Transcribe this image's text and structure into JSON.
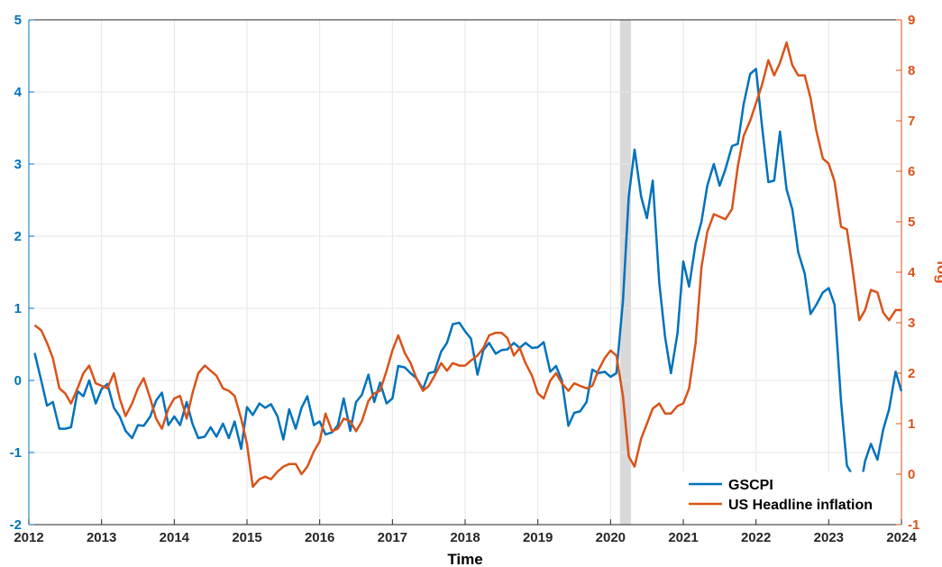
{
  "chart_data": {
    "type": "line",
    "x_label": "Time",
    "y2_label": "log",
    "legend": "lower right",
    "grid": true,
    "shade": {
      "x": [
        2020.13,
        2020.28
      ],
      "color": "#d9d9d9"
    },
    "xlim": [
      2012,
      2024
    ],
    "xticks": [
      2012,
      2013,
      2014,
      2015,
      2016,
      2017,
      2018,
      2019,
      2020,
      2021,
      2022,
      2023,
      2024
    ],
    "ylim": [
      -2,
      5
    ],
    "yticks": [
      -2,
      -1,
      0,
      1,
      2,
      3,
      4,
      5
    ],
    "y_color": "#0072bd",
    "y2lim": [
      -1,
      9
    ],
    "y2ticks": [
      -1,
      0,
      1,
      2,
      3,
      4,
      5,
      6,
      7,
      8,
      9
    ],
    "y2_color": "#d95319",
    "x": [
      2012.08,
      2012.17,
      2012.25,
      2012.33,
      2012.42,
      2012.5,
      2012.58,
      2012.67,
      2012.75,
      2012.83,
      2012.92,
      2013,
      2013.08,
      2013.17,
      2013.25,
      2013.33,
      2013.42,
      2013.5,
      2013.58,
      2013.67,
      2013.75,
      2013.83,
      2013.92,
      2014,
      2014.08,
      2014.17,
      2014.25,
      2014.33,
      2014.42,
      2014.5,
      2014.58,
      2014.67,
      2014.75,
      2014.83,
      2014.92,
      2015,
      2015.08,
      2015.17,
      2015.25,
      2015.33,
      2015.42,
      2015.5,
      2015.58,
      2015.67,
      2015.75,
      2015.83,
      2015.92,
      2016,
      2016.08,
      2016.17,
      2016.25,
      2016.33,
      2016.42,
      2016.5,
      2016.58,
      2016.67,
      2016.75,
      2016.83,
      2016.92,
      2017,
      2017.08,
      2017.17,
      2017.25,
      2017.33,
      2017.42,
      2017.5,
      2017.58,
      2017.67,
      2017.75,
      2017.83,
      2017.92,
      2018,
      2018.08,
      2018.17,
      2018.25,
      2018.33,
      2018.42,
      2018.5,
      2018.58,
      2018.67,
      2018.75,
      2018.83,
      2018.92,
      2019,
      2019.08,
      2019.17,
      2019.25,
      2019.33,
      2019.42,
      2019.5,
      2019.58,
      2019.67,
      2019.75,
      2019.83,
      2019.92,
      2020,
      2020.08,
      2020.17,
      2020.25,
      2020.33,
      2020.42,
      2020.5,
      2020.58,
      2020.67,
      2020.75,
      2020.83,
      2020.92,
      2021,
      2021.08,
      2021.17,
      2021.25,
      2021.33,
      2021.42,
      2021.5,
      2021.58,
      2021.67,
      2021.75,
      2021.83,
      2021.92,
      2022,
      2022.08,
      2022.17,
      2022.25,
      2022.33,
      2022.42,
      2022.5,
      2022.58,
      2022.67,
      2022.75,
      2022.83,
      2022.92,
      2023,
      2023.08,
      2023.17,
      2023.25,
      2023.33,
      2023.42,
      2023.5,
      2023.58,
      2023.67,
      2023.75,
      2023.83,
      2023.92,
      2024
    ],
    "series": [
      {
        "name": "GSCPI",
        "color": "#0072bd",
        "values": [
          0.38,
          0.0,
          -0.35,
          -0.3,
          -0.67,
          -0.67,
          -0.65,
          -0.15,
          -0.22,
          0.0,
          -0.32,
          -0.12,
          -0.05,
          -0.38,
          -0.5,
          -0.7,
          -0.8,
          -0.62,
          -0.63,
          -0.5,
          -0.28,
          -0.17,
          -0.62,
          -0.5,
          -0.62,
          -0.3,
          -0.6,
          -0.8,
          -0.78,
          -0.65,
          -0.78,
          -0.6,
          -0.8,
          -0.57,
          -0.95,
          -0.37,
          -0.48,
          -0.32,
          -0.38,
          -0.33,
          -0.5,
          -0.82,
          -0.4,
          -0.67,
          -0.38,
          -0.22,
          -0.62,
          -0.57,
          -0.75,
          -0.72,
          -0.62,
          -0.25,
          -0.7,
          -0.3,
          -0.2,
          0.08,
          -0.3,
          -0.03,
          -0.32,
          -0.25,
          0.2,
          0.18,
          0.1,
          0.03,
          -0.12,
          0.1,
          0.12,
          0.4,
          0.52,
          0.78,
          0.8,
          0.68,
          0.58,
          0.08,
          0.42,
          0.52,
          0.37,
          0.42,
          0.43,
          0.52,
          0.45,
          0.52,
          0.45,
          0.46,
          0.53,
          0.12,
          0.2,
          0.0,
          -0.63,
          -0.45,
          -0.43,
          -0.3,
          0.15,
          0.1,
          0.12,
          0.05,
          0.1,
          1.1,
          2.55,
          3.2,
          2.55,
          2.25,
          2.77,
          1.35,
          0.6,
          0.1,
          0.65,
          1.65,
          1.3,
          1.9,
          2.2,
          2.7,
          3.0,
          2.7,
          2.93,
          3.25,
          3.28,
          3.83,
          4.25,
          4.32,
          3.55,
          2.75,
          2.77,
          3.45,
          2.65,
          2.37,
          1.78,
          1.48,
          0.92,
          1.05,
          1.22,
          1.28,
          1.05,
          -0.3,
          -1.18,
          -1.32,
          -1.57,
          -1.12,
          -0.88,
          -1.1,
          -0.68,
          -0.4,
          0.12,
          -0.15
        ]
      },
      {
        "name": "US Headline inflation",
        "color": "#d95319",
        "axis": "y2",
        "values": [
          2.95,
          2.85,
          2.6,
          2.3,
          1.7,
          1.6,
          1.4,
          1.7,
          2.0,
          2.15,
          1.8,
          1.75,
          1.7,
          2.0,
          1.5,
          1.15,
          1.4,
          1.7,
          1.9,
          1.5,
          1.1,
          0.9,
          1.3,
          1.5,
          1.55,
          1.1,
          1.6,
          2.0,
          2.15,
          2.05,
          1.95,
          1.7,
          1.65,
          1.55,
          1.1,
          0.6,
          -0.25,
          -0.1,
          -0.05,
          -0.1,
          0.05,
          0.15,
          0.2,
          0.2,
          0.0,
          0.15,
          0.45,
          0.65,
          1.2,
          0.85,
          0.9,
          1.1,
          1.05,
          0.85,
          1.05,
          1.45,
          1.6,
          1.65,
          2.05,
          2.45,
          2.75,
          2.4,
          2.2,
          1.9,
          1.65,
          1.75,
          1.95,
          2.2,
          2.05,
          2.2,
          2.15,
          2.15,
          2.25,
          2.35,
          2.5,
          2.75,
          2.8,
          2.8,
          2.7,
          2.35,
          2.5,
          2.2,
          1.95,
          1.6,
          1.5,
          1.85,
          2.0,
          1.8,
          1.65,
          1.8,
          1.75,
          1.7,
          1.75,
          2.05,
          2.3,
          2.45,
          2.35,
          1.55,
          0.35,
          0.15,
          0.7,
          1.0,
          1.3,
          1.4,
          1.2,
          1.2,
          1.35,
          1.4,
          1.7,
          2.6,
          4.1,
          4.8,
          5.15,
          5.1,
          5.05,
          5.25,
          6.1,
          6.7,
          7.0,
          7.35,
          7.7,
          8.2,
          7.9,
          8.15,
          8.55,
          8.1,
          7.9,
          7.9,
          7.45,
          6.8,
          6.25,
          6.15,
          5.8,
          4.9,
          4.85,
          4.05,
          3.05,
          3.25,
          3.65,
          3.6,
          3.2,
          3.05,
          3.25,
          3.25
        ]
      }
    ]
  }
}
